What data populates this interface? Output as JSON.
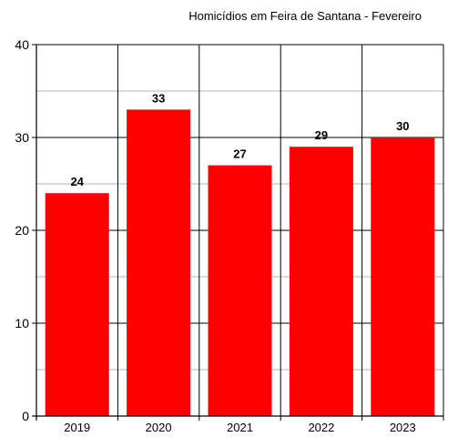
{
  "chart_data": {
    "type": "bar",
    "title": "Homicídios em Feira de Santana - Fevereiro",
    "categories": [
      "2019",
      "2020",
      "2021",
      "2022",
      "2023"
    ],
    "values": [
      24,
      33,
      27,
      29,
      30
    ],
    "data_labels": [
      "24",
      "33",
      "27",
      "29",
      "30"
    ],
    "ylim": [
      0,
      40
    ],
    "yticks": [
      0,
      10,
      20,
      30,
      40
    ],
    "ytick_labels": [
      "0",
      "10",
      "20",
      "30",
      "40"
    ],
    "xlabel": "",
    "ylabel": "",
    "grid": true,
    "bar_color": "#ff0000",
    "gridline_color_major": "#000000",
    "gridline_color_minor": "#b4b4b4"
  }
}
